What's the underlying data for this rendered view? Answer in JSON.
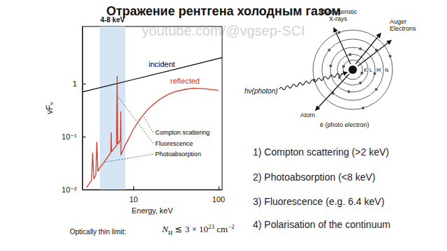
{
  "title": "Отражение рентгена холодным газом",
  "watermark": "youtube.com/@vgsep-SCI",
  "chart_data": {
    "type": "line",
    "log": true,
    "grid": false,
    "xlabel": "Energy, keV",
    "ylabel": {
      "text": "νF",
      "subscript": "ν"
    },
    "xlim": [
      2.5,
      110
    ],
    "ylim": [
      0.01,
      12
    ],
    "xticks": [
      10,
      100
    ],
    "yticks": [
      {
        "value": 0.01,
        "label": "10⁻²"
      },
      {
        "value": 0.1,
        "label": "10⁻¹"
      },
      1
    ],
    "band": {
      "x": [
        4,
        8
      ],
      "label": "4-8 keV",
      "color": "#cfe1f2"
    },
    "series": [
      {
        "name": "incident",
        "color": "#000000",
        "x": [
          2.5,
          10,
          110
        ],
        "values": [
          0.7,
          1.2,
          3.1
        ]
      },
      {
        "name": "reflected",
        "color": "#d03a2a",
        "x": [
          2.8,
          3.0,
          3.2,
          3.3,
          3.4,
          3.6,
          3.69,
          3.8,
          4.0,
          4.5,
          5.0,
          5.4,
          5.45,
          5.5,
          6.0,
          6.3,
          6.4,
          6.5,
          6.8,
          7.0,
          7.06,
          7.1,
          7.12,
          7.5,
          8.0,
          9,
          10,
          12,
          15,
          20,
          25,
          30,
          40,
          50,
          70,
          100
        ],
        "values": [
          0.011,
          0.013,
          0.015,
          0.05,
          0.016,
          0.019,
          0.08,
          0.022,
          0.026,
          0.033,
          0.042,
          0.05,
          0.12,
          0.052,
          0.062,
          0.068,
          1.4,
          0.072,
          0.08,
          0.088,
          0.3,
          0.045,
          0.046,
          0.055,
          0.07,
          0.1,
          0.14,
          0.22,
          0.34,
          0.5,
          0.62,
          0.7,
          0.78,
          0.82,
          0.8,
          0.75
        ]
      }
    ],
    "annotations": [
      {
        "text": "incident",
        "x": 15,
        "y": 2.0,
        "color": "#000000"
      },
      {
        "text": "reflected",
        "x": 27,
        "y": 0.95,
        "color": "#d03a2a"
      },
      {
        "text": "Compton scattering",
        "x": 18,
        "y": 0.12,
        "color": "#000000",
        "points_to": [
          13,
          0.25
        ]
      },
      {
        "text": "Fluorescence",
        "x": 18,
        "y": 0.075,
        "color": "#000000",
        "points_to": [
          6.4,
          0.6
        ]
      },
      {
        "text": "Photoabsorption",
        "x": 18,
        "y": 0.047,
        "color": "#000000",
        "points_to": [
          4.5,
          0.033
        ]
      }
    ]
  },
  "diagram": {
    "characteristic": [
      "Characteristic",
      "X-rays"
    ],
    "auger": [
      "Auger",
      "Electrons"
    ],
    "photon": "hν(photon)",
    "atom": "Atom",
    "electron": "ē (photo electron)",
    "shells": [
      "K",
      "L",
      "M",
      "N"
    ]
  },
  "list": [
    "1) Compton scattering (>2 keV)",
    "2) Photoabsorption (<8 keV)",
    "3)  Fluorescence (e.g. 6.4 keV)",
    "4) Polarisation of the continuum"
  ],
  "footer": {
    "label": "Optically thin limit:",
    "formula": {
      "symbol": "N",
      "subscript": "H",
      "relation": " ≲ 3 × 10",
      "exponent": "23",
      "unit": " cm",
      "unit_exponent": "−2"
    }
  }
}
